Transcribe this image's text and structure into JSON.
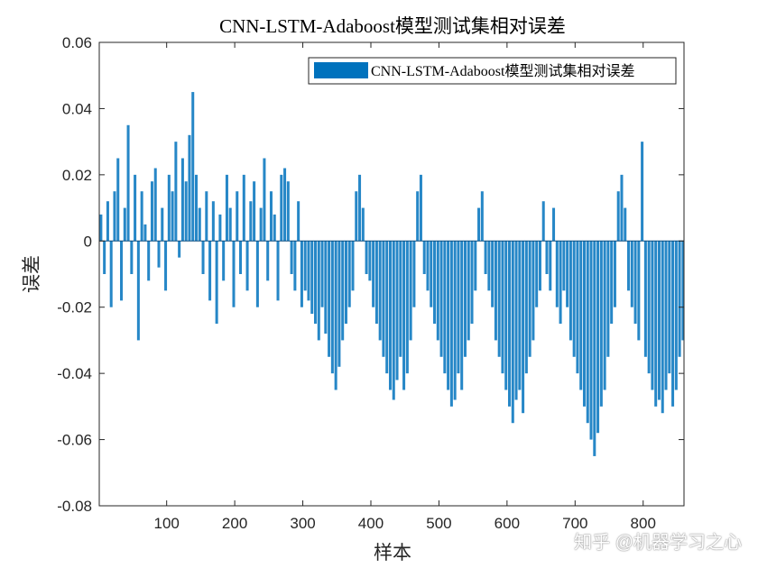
{
  "chart_data": {
    "type": "bar",
    "title": "CNN-LSTM-Adaboost模型测试集相对误差",
    "xlabel": "样本",
    "ylabel": "误差",
    "xlim": [
      1,
      860
    ],
    "ylim": [
      -0.08,
      0.06
    ],
    "x_start": 1,
    "x_step": 5,
    "xticks": [
      100,
      200,
      300,
      400,
      500,
      600,
      700,
      800
    ],
    "xtick_labels": [
      "100",
      "200",
      "300",
      "400",
      "500",
      "600",
      "700",
      "800"
    ],
    "yticks": [
      -0.08,
      -0.06,
      -0.04,
      -0.02,
      0,
      0.02,
      0.04,
      0.06
    ],
    "ytick_labels": [
      "-0.08",
      "-0.06",
      "-0.04",
      "-0.02",
      "0",
      "0.02",
      "0.04",
      "0.06"
    ],
    "grid": false,
    "legend": {
      "placement": "top-right",
      "entries": [
        "CNN-LSTM-Adaboost模型测试集相对误差"
      ]
    },
    "bar_color": "#0072BD",
    "series": [
      {
        "name": "CNN-LSTM-Adaboost模型测试集相对误差",
        "values": [
          0.008,
          -0.01,
          0.012,
          -0.02,
          0.015,
          0.025,
          -0.018,
          0.01,
          0.035,
          -0.01,
          0.02,
          -0.03,
          0.015,
          0.005,
          -0.012,
          0.018,
          0.022,
          -0.008,
          0.01,
          -0.015,
          0.02,
          0.015,
          0.03,
          -0.005,
          0.025,
          0.018,
          0.032,
          0.045,
          0.02,
          0.01,
          -0.01,
          0.015,
          -0.018,
          0.012,
          -0.025,
          0.008,
          -0.012,
          0.02,
          0.01,
          -0.02,
          0.015,
          -0.01,
          0.02,
          -0.015,
          0.012,
          0.018,
          -0.02,
          0.01,
          0.025,
          -0.012,
          0.015,
          0.008,
          -0.018,
          0.02,
          0.022,
          0.018,
          -0.01,
          -0.015,
          0.012,
          -0.02,
          -0.015,
          -0.018,
          -0.022,
          -0.025,
          -0.03,
          -0.02,
          -0.028,
          -0.035,
          -0.04,
          -0.045,
          -0.038,
          -0.03,
          -0.025,
          -0.02,
          -0.015,
          0.015,
          0.02,
          0.01,
          -0.01,
          -0.012,
          -0.02,
          -0.025,
          -0.03,
          -0.035,
          -0.04,
          -0.045,
          -0.048,
          -0.042,
          -0.035,
          -0.045,
          -0.04,
          -0.03,
          -0.02,
          0.015,
          0.02,
          -0.01,
          -0.015,
          -0.02,
          -0.025,
          -0.03,
          -0.035,
          -0.04,
          -0.045,
          -0.05,
          -0.048,
          -0.04,
          -0.045,
          -0.035,
          -0.03,
          -0.025,
          -0.015,
          0.01,
          0.015,
          -0.01,
          -0.015,
          -0.02,
          -0.03,
          -0.035,
          -0.04,
          -0.045,
          -0.05,
          -0.055,
          -0.048,
          -0.045,
          -0.052,
          -0.04,
          -0.035,
          -0.03,
          -0.02,
          -0.015,
          0.012,
          -0.01,
          -0.015,
          0.01,
          -0.02,
          -0.025,
          -0.015,
          -0.02,
          -0.03,
          -0.035,
          -0.04,
          -0.045,
          -0.05,
          -0.055,
          -0.06,
          -0.065,
          -0.058,
          -0.05,
          -0.045,
          -0.035,
          -0.025,
          -0.02,
          0.015,
          0.02,
          0.01,
          -0.015,
          -0.02,
          -0.025,
          -0.03,
          0.03,
          -0.035,
          -0.04,
          -0.045,
          -0.05,
          -0.048,
          -0.052,
          -0.045,
          -0.04,
          -0.05,
          -0.045,
          -0.035,
          -0.03
        ]
      }
    ]
  },
  "watermark": "知乎 @机器学习之心"
}
